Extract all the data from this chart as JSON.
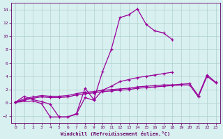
{
  "xlabel": "Windchill (Refroidissement éolien,°C)",
  "curve1_x": [
    0,
    1,
    2,
    3,
    4,
    5,
    6,
    7,
    8,
    9,
    10,
    11,
    12,
    13,
    14,
    15,
    16,
    17,
    18
  ],
  "curve1_y": [
    0.1,
    1.0,
    0.5,
    0.2,
    -0.2,
    -2.1,
    -2.1,
    -1.6,
    2.2,
    0.5,
    4.7,
    8.0,
    12.8,
    13.2,
    14.1,
    11.8,
    10.8,
    10.5,
    9.5
  ],
  "curve2_x": [
    0,
    2,
    3,
    4,
    5,
    6,
    7,
    8,
    9,
    10,
    11,
    12,
    13,
    14,
    15,
    16,
    17,
    18
  ],
  "curve2_y": [
    0.1,
    0.3,
    -0.1,
    -2.1,
    -2.1,
    -2.1,
    -1.7,
    0.8,
    0.4,
    1.9,
    2.5,
    3.2,
    3.5,
    3.8,
    4.0,
    4.2,
    4.4,
    4.6
  ],
  "curve3_x": [
    0,
    1,
    2,
    3,
    4,
    5,
    6,
    7,
    8,
    9,
    10,
    11,
    12,
    13,
    14,
    15,
    16,
    17,
    18,
    19,
    20,
    21,
    22,
    23
  ],
  "curve3_y": [
    0.1,
    0.6,
    0.9,
    1.1,
    1.0,
    1.0,
    1.1,
    1.4,
    1.6,
    1.7,
    1.9,
    2.0,
    2.1,
    2.2,
    2.4,
    2.5,
    2.6,
    2.7,
    2.7,
    2.8,
    2.9,
    1.1,
    4.2,
    3.1
  ],
  "curve4_x": [
    0,
    1,
    2,
    3,
    4,
    5,
    6,
    7,
    8,
    9,
    10,
    11,
    12,
    13,
    14,
    15,
    16,
    17,
    18,
    19,
    20,
    21,
    22,
    23
  ],
  "curve4_y": [
    0.1,
    0.4,
    0.7,
    0.9,
    0.8,
    0.8,
    0.9,
    1.2,
    1.4,
    1.5,
    1.7,
    1.8,
    1.9,
    2.0,
    2.2,
    2.3,
    2.4,
    2.5,
    2.6,
    2.7,
    2.7,
    0.9,
    4.0,
    3.0
  ],
  "ylim": [
    -3,
    15
  ],
  "xlim": [
    -0.5,
    23.5
  ],
  "yticks": [
    -2,
    0,
    2,
    4,
    6,
    8,
    10,
    12,
    14
  ],
  "xticks": [
    0,
    1,
    2,
    3,
    4,
    5,
    6,
    7,
    8,
    9,
    10,
    11,
    12,
    13,
    14,
    15,
    16,
    17,
    18,
    19,
    20,
    21,
    22,
    23
  ],
  "line_color": "#990099",
  "bg_color": "#d8f0f0",
  "grid_color": "#b0d0d0",
  "tick_color": "#660066",
  "figsize": [
    3.2,
    2.0
  ],
  "dpi": 100
}
